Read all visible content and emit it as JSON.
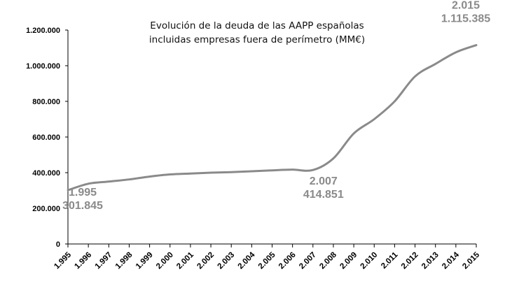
{
  "chart_data": {
    "type": "line",
    "title_lines": [
      "Evolución de la deuda de las AAPP españolas",
      "incluidas empresas fuera de perímetro (MM€)"
    ],
    "xlabel": "",
    "ylabel": "",
    "x": [
      "1.995",
      "1.996",
      "1.997",
      "1.998",
      "1.999",
      "2.000",
      "2.001",
      "2.002",
      "2.003",
      "2.004",
      "2.005",
      "2.006",
      "2.007",
      "2.008",
      "2.009",
      "2.010",
      "2.011",
      "2.012",
      "2.013",
      "2.014",
      "2.015"
    ],
    "values": [
      301845,
      338000,
      350000,
      362000,
      378000,
      390000,
      395000,
      400000,
      403000,
      408000,
      413000,
      417000,
      414851,
      480000,
      620000,
      700000,
      800000,
      940000,
      1010000,
      1075000,
      1115385
    ],
    "ylim": [
      0,
      1200000
    ],
    "yticks": [
      {
        "value": 0,
        "label": "0"
      },
      {
        "value": 200000,
        "label": "200.000"
      },
      {
        "value": 400000,
        "label": "400.000"
      },
      {
        "value": 600000,
        "label": "600.000"
      },
      {
        "value": 800000,
        "label": "800.000"
      },
      {
        "value": 1000000,
        "label": "1.000.000"
      },
      {
        "value": 1200000,
        "label": "1.200.000"
      }
    ],
    "grid": false,
    "legend": "none",
    "line_color": "#8a8a8a",
    "annotations": [
      {
        "index": 0,
        "year": "1.995",
        "value": "301.845"
      },
      {
        "index": 12,
        "year": "2.007",
        "value": "414.851"
      },
      {
        "index": 20,
        "year": "2.015",
        "value": "1.115.385"
      }
    ]
  }
}
